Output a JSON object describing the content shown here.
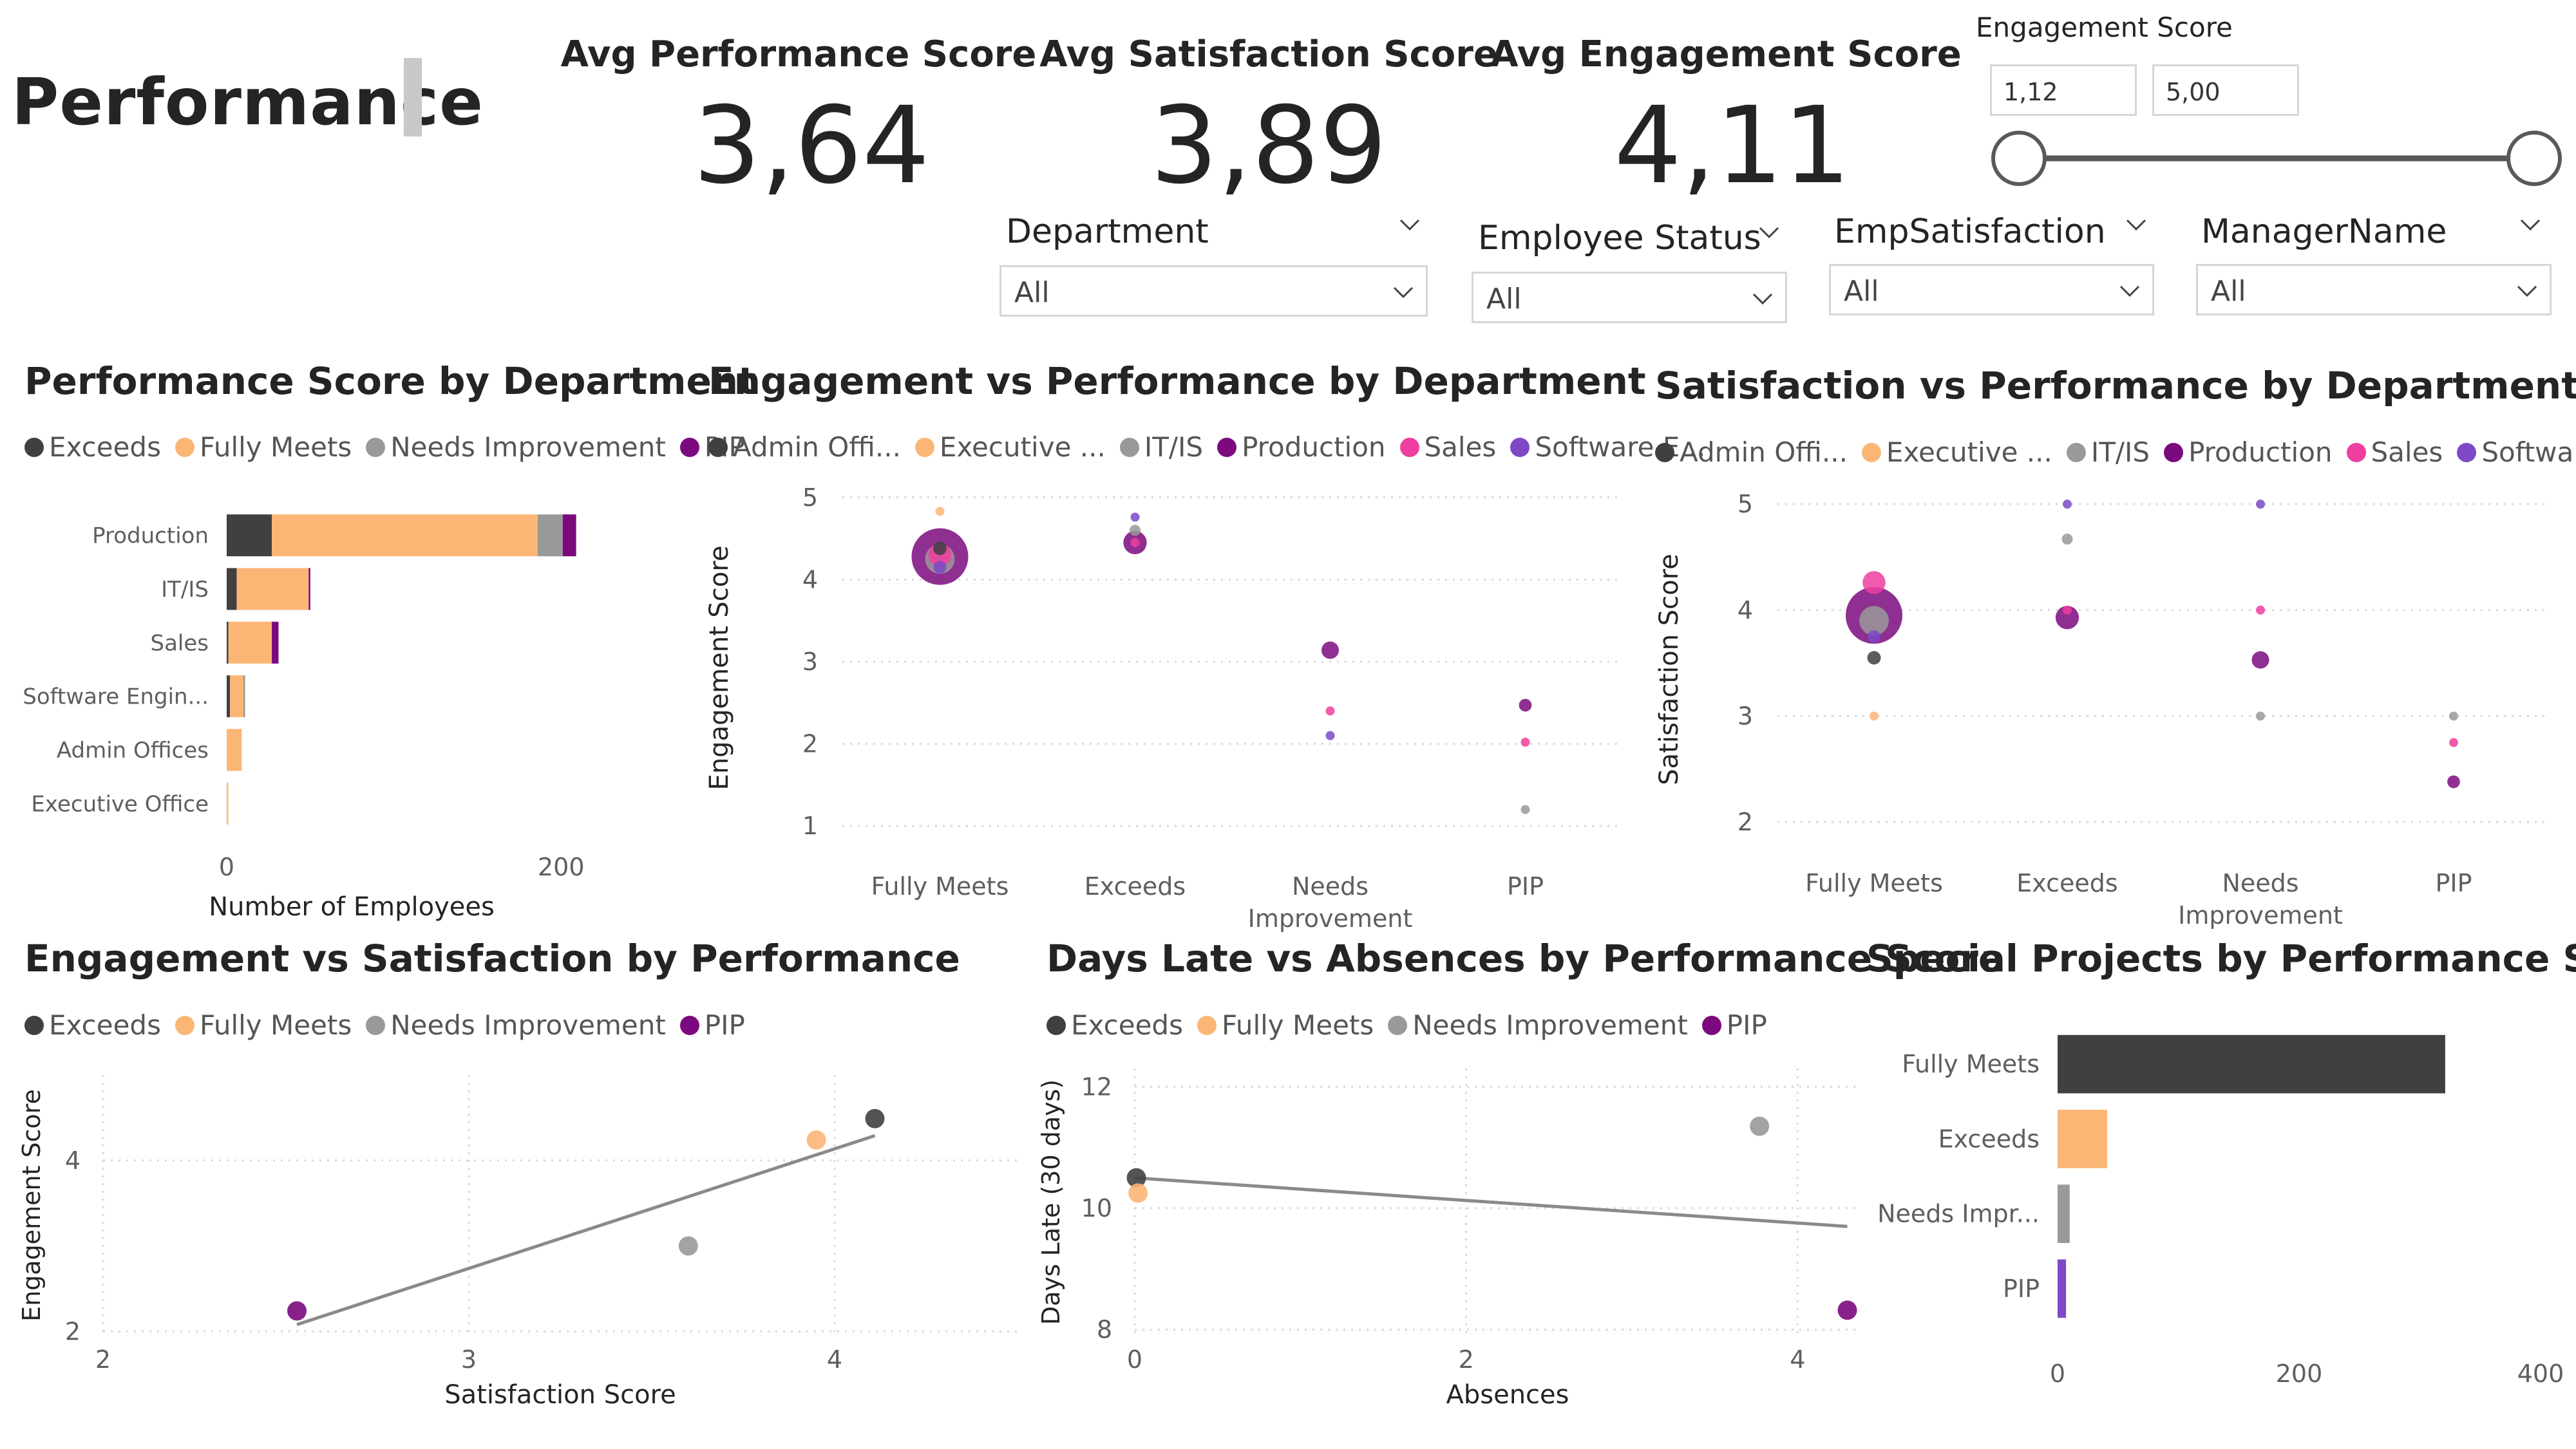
{
  "page": {
    "title": "Performance"
  },
  "kpis": [
    {
      "label": "Avg Performance Score",
      "value": "3,64"
    },
    {
      "label": "Avg Satisfaction Score",
      "value": "3,89"
    },
    {
      "label": "Avg Engagement Score",
      "value": "4,11"
    }
  ],
  "range_slicer": {
    "title": "Engagement Score",
    "min": "1,12",
    "max": "5,00",
    "low_fraction": 0,
    "high_fraction": 1
  },
  "dropdowns": [
    {
      "title": "Department",
      "value": "All"
    },
    {
      "title": "Employee Status",
      "value": "All"
    },
    {
      "title": "EmpSatisfaction",
      "value": "All"
    },
    {
      "title": "ManagerName",
      "value": "All"
    }
  ],
  "colors": {
    "Exceeds": "#404040",
    "Fully Meets": "#fbb676",
    "Needs Improvement": "#999999",
    "PIP": "#7b0a7e",
    "Admin Offices": "#404040",
    "Executive Office": "#fbb676",
    "IT/IS": "#999999",
    "Production": "#7b0a7e",
    "Sales": "#ee3ea0",
    "Software Engineering": "#7d49c6",
    "grid": "#d9d9d9",
    "axis_text": "#605e5c",
    "trend": "#8a8a8a"
  },
  "chart_data": [
    {
      "id": "perf_by_dept",
      "type": "bar",
      "orientation": "horizontal",
      "stacked": true,
      "title": "Performance Score by Department",
      "xlabel": "Number of Employees",
      "ylabel": "",
      "xlim": [
        0,
        265
      ],
      "xticks": [
        0,
        200
      ],
      "categories": [
        "Production",
        "IT/IS",
        "Sales",
        "Software Engin...",
        "Admin Offices",
        "Executive Office"
      ],
      "legend": [
        "Exceeds",
        "Fully Meets",
        "Needs Improvement",
        "PIP"
      ],
      "series": [
        {
          "name": "Exceeds",
          "values": [
            27,
            6,
            1,
            2,
            0,
            0
          ]
        },
        {
          "name": "Fully Meets",
          "values": [
            159,
            43,
            26,
            8,
            9,
            1
          ]
        },
        {
          "name": "Needs Improvement",
          "values": [
            15,
            0,
            0,
            1,
            0,
            0
          ]
        },
        {
          "name": "PIP",
          "values": [
            8,
            1,
            4,
            0,
            0,
            0
          ]
        }
      ]
    },
    {
      "id": "eng_vs_perf",
      "type": "scatter",
      "title": "Engagement vs Performance by Department",
      "xlabel": "",
      "ylabel": "Engagement Score",
      "ylim": [
        0.75,
        5.1
      ],
      "yticks": [
        1,
        2,
        3,
        4,
        5
      ],
      "categories": [
        "Fully Meets",
        "Exceeds",
        "Needs Improvement",
        "PIP"
      ],
      "xtick_lines": [
        [
          "Fully Meets"
        ],
        [
          "Exceeds"
        ],
        [
          "Needs",
          "Improvement"
        ],
        [
          "PIP"
        ]
      ],
      "legend": [
        "Admin Offi...",
        "Executive ...",
        "IT/IS",
        "Production",
        "Sales",
        "Software E..."
      ],
      "legend_keys": [
        "Admin Offices",
        "Executive Office",
        "IT/IS",
        "Production",
        "Sales",
        "Software Engineering"
      ],
      "points": [
        {
          "cat": "Fully Meets",
          "dept": "Executive Office",
          "y": 4.83,
          "size": 1
        },
        {
          "cat": "Fully Meets",
          "dept": "Production",
          "y": 4.28,
          "size": 159
        },
        {
          "cat": "Fully Meets",
          "dept": "Sales",
          "y": 4.3,
          "size": 26
        },
        {
          "cat": "Fully Meets",
          "dept": "Admin Offices",
          "y": 4.38,
          "size": 9
        },
        {
          "cat": "Fully Meets",
          "dept": "IT/IS",
          "y": 4.25,
          "size": 43
        },
        {
          "cat": "Fully Meets",
          "dept": "Software Engineering",
          "y": 4.15,
          "size": 8
        },
        {
          "cat": "Exceeds",
          "dept": "Software Engineering",
          "y": 4.76,
          "size": 2
        },
        {
          "cat": "Exceeds",
          "dept": "IT/IS",
          "y": 4.6,
          "size": 6
        },
        {
          "cat": "Exceeds",
          "dept": "Production",
          "y": 4.45,
          "size": 27
        },
        {
          "cat": "Exceeds",
          "dept": "Sales",
          "y": 4.45,
          "size": 1
        },
        {
          "cat": "Needs Improvement",
          "dept": "Production",
          "y": 3.14,
          "size": 15
        },
        {
          "cat": "Needs Improvement",
          "dept": "Sales",
          "y": 2.4,
          "size": 1
        },
        {
          "cat": "Needs Improvement",
          "dept": "Software Engineering",
          "y": 2.1,
          "size": 1
        },
        {
          "cat": "PIP",
          "dept": "Production",
          "y": 2.47,
          "size": 8
        },
        {
          "cat": "PIP",
          "dept": "Sales",
          "y": 2.02,
          "size": 4
        },
        {
          "cat": "PIP",
          "dept": "IT/IS",
          "y": 1.2,
          "size": 1
        }
      ]
    },
    {
      "id": "sat_vs_perf",
      "type": "scatter",
      "title": "Satisfaction vs Performance by Department",
      "xlabel": "",
      "ylabel": "Satisfaction Score",
      "ylim": [
        1.8,
        5.08
      ],
      "yticks": [
        2,
        3,
        4,
        5
      ],
      "categories": [
        "Fully Meets",
        "Exceeds",
        "Needs Improvement",
        "PIP"
      ],
      "xtick_lines": [
        [
          "Fully Meets"
        ],
        [
          "Exceeds"
        ],
        [
          "Needs",
          "Improvement"
        ],
        [
          "PIP"
        ]
      ],
      "legend": [
        "Admin Offi...",
        "Executive ...",
        "IT/IS",
        "Production",
        "Sales",
        "Software ..."
      ],
      "legend_keys": [
        "Admin Offices",
        "Executive Office",
        "IT/IS",
        "Production",
        "Sales",
        "Software Engineering"
      ],
      "points": [
        {
          "cat": "Fully Meets",
          "dept": "Sales",
          "y": 4.26,
          "size": 26
        },
        {
          "cat": "Fully Meets",
          "dept": "Production",
          "y": 3.95,
          "size": 159
        },
        {
          "cat": "Fully Meets",
          "dept": "IT/IS",
          "y": 3.9,
          "size": 43
        },
        {
          "cat": "Fully Meets",
          "dept": "Software Engineering",
          "y": 3.75,
          "size": 8
        },
        {
          "cat": "Fully Meets",
          "dept": "Admin Offices",
          "y": 3.55,
          "size": 9
        },
        {
          "cat": "Fully Meets",
          "dept": "Executive Office",
          "y": 3.0,
          "size": 1
        },
        {
          "cat": "Exceeds",
          "dept": "Software Engineering",
          "y": 5.0,
          "size": 2
        },
        {
          "cat": "Exceeds",
          "dept": "IT/IS",
          "y": 4.67,
          "size": 6
        },
        {
          "cat": "Exceeds",
          "dept": "Sales",
          "y": 4.0,
          "size": 1
        },
        {
          "cat": "Exceeds",
          "dept": "Production",
          "y": 3.93,
          "size": 27
        },
        {
          "cat": "Needs Improvement",
          "dept": "Software Engineering",
          "y": 5.0,
          "size": 1
        },
        {
          "cat": "Needs Improvement",
          "dept": "Sales",
          "y": 4.0,
          "size": 1
        },
        {
          "cat": "Needs Improvement",
          "dept": "Production",
          "y": 3.53,
          "size": 15
        },
        {
          "cat": "Needs Improvement",
          "dept": "IT/IS",
          "y": 3.0,
          "size": 1
        },
        {
          "cat": "PIP",
          "dept": "IT/IS",
          "y": 3.0,
          "size": 1
        },
        {
          "cat": "PIP",
          "dept": "Sales",
          "y": 2.75,
          "size": 4
        },
        {
          "cat": "PIP",
          "dept": "Production",
          "y": 2.38,
          "size": 8
        }
      ]
    },
    {
      "id": "eng_vs_sat",
      "type": "scatter",
      "title": "Engagement vs Satisfaction by Performance",
      "xlabel": "Satisfaction Score",
      "ylabel": "Engagement Score",
      "xlim": [
        2,
        4.5
      ],
      "ylim": [
        1.95,
        5.0
      ],
      "xticks": [
        2,
        3,
        4
      ],
      "yticks": [
        2,
        4
      ],
      "legend": [
        "Exceeds",
        "Fully Meets",
        "Needs Improvement",
        "PIP"
      ],
      "points": [
        {
          "name": "Exceeds",
          "x": 4.11,
          "y": 4.49
        },
        {
          "name": "Fully Meets",
          "x": 3.95,
          "y": 4.24
        },
        {
          "name": "Needs Improvement",
          "x": 3.6,
          "y": 3.0
        },
        {
          "name": "PIP",
          "x": 2.53,
          "y": 2.24
        }
      ],
      "trendline": [
        [
          2.53,
          2.08
        ],
        [
          4.11,
          4.29
        ]
      ]
    },
    {
      "id": "late_vs_abs",
      "type": "scatter",
      "title": "Days Late vs Absences by Performance Score",
      "xlabel": "Absences",
      "ylabel": "Days Late (30 days)",
      "xlim": [
        0,
        4.5
      ],
      "ylim": [
        7.9,
        12.3
      ],
      "xticks": [
        0,
        2,
        4
      ],
      "yticks": [
        8,
        10,
        12
      ],
      "legend": [
        "Exceeds",
        "Fully Meets",
        "Needs Improvement",
        "PIP"
      ],
      "points": [
        {
          "name": "Exceeds",
          "x": 0.01,
          "y": 10.5
        },
        {
          "name": "Fully Meets",
          "x": 0.02,
          "y": 10.25
        },
        {
          "name": "Needs Improvement",
          "x": 3.77,
          "y": 11.35
        },
        {
          "name": "PIP",
          "x": 4.3,
          "y": 8.32
        }
      ],
      "trendline": [
        [
          0,
          10.5
        ],
        [
          4.3,
          9.7
        ]
      ]
    },
    {
      "id": "special_projects",
      "type": "bar",
      "orientation": "horizontal",
      "title": "Special Projects by Performance Score",
      "xlabel": "",
      "ylabel": "",
      "xlim": [
        0,
        400
      ],
      "xticks": [
        0,
        200,
        400
      ],
      "categories": [
        "Fully Meets",
        "Exceeds",
        "Needs Impr...",
        "PIP"
      ],
      "color_keys": [
        "Exceeds",
        "Fully Meets",
        "Needs Improvement",
        "Software Engineering"
      ],
      "values": [
        321,
        41,
        10,
        7
      ]
    }
  ]
}
